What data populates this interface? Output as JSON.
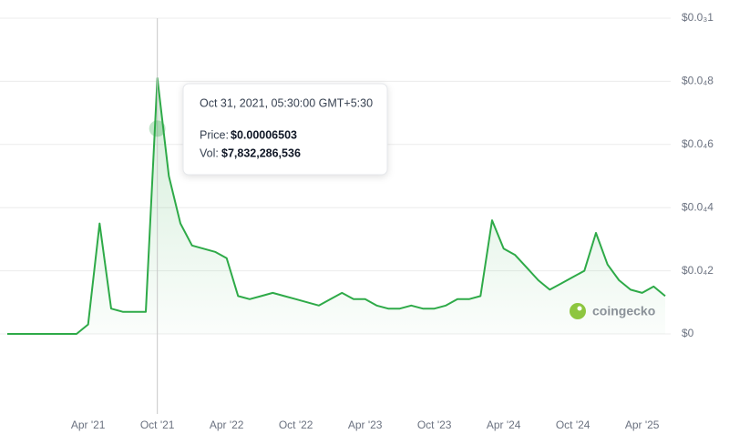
{
  "chart_data": {
    "type": "line",
    "color": "#2eaa48",
    "grid": true,
    "x": [
      "2020-09",
      "2020-10",
      "2020-11",
      "2020-12",
      "2021-01",
      "2021-02",
      "2021-03",
      "2021-04",
      "2021-05",
      "2021-06",
      "2021-07",
      "2021-08",
      "2021-09",
      "2021-10",
      "2021-11",
      "2021-12",
      "2022-01",
      "2022-02",
      "2022-03",
      "2022-04",
      "2022-05",
      "2022-06",
      "2022-07",
      "2022-08",
      "2022-09",
      "2022-10",
      "2022-11",
      "2022-12",
      "2023-01",
      "2023-02",
      "2023-03",
      "2023-04",
      "2023-05",
      "2023-06",
      "2023-07",
      "2023-08",
      "2023-09",
      "2023-10",
      "2023-11",
      "2023-12",
      "2024-01",
      "2024-02",
      "2024-03",
      "2024-04",
      "2024-05",
      "2024-06",
      "2024-07",
      "2024-08",
      "2024-09",
      "2024-10",
      "2024-11",
      "2024-12",
      "2025-01",
      "2025-02",
      "2025-03",
      "2025-04",
      "2025-05",
      "2025-06"
    ],
    "values": [
      1e-08,
      1e-08,
      1e-08,
      1e-08,
      1e-08,
      1e-08,
      1e-08,
      3e-06,
      3.5e-05,
      8e-06,
      7e-06,
      7e-06,
      7e-06,
      8.1e-05,
      5e-05,
      3.5e-05,
      2.8e-05,
      2.7e-05,
      2.6e-05,
      2.4e-05,
      1.2e-05,
      1.1e-05,
      1.2e-05,
      1.3e-05,
      1.2e-05,
      1.1e-05,
      1e-05,
      9e-06,
      1.1e-05,
      1.3e-05,
      1.1e-05,
      1.1e-05,
      9e-06,
      8e-06,
      8e-06,
      9e-06,
      8e-06,
      8e-06,
      9e-06,
      1.1e-05,
      1.1e-05,
      1.2e-05,
      3.6e-05,
      2.7e-05,
      2.5e-05,
      2.1e-05,
      1.7e-05,
      1.4e-05,
      1.6e-05,
      1.8e-05,
      2e-05,
      3.2e-05,
      2.2e-05,
      1.7e-05,
      1.4e-05,
      1.3e-05,
      1.5e-05,
      1.2e-05
    ],
    "xlim": [
      "2020-09",
      "2025-06"
    ],
    "xticks": [
      {
        "value": "2021-04",
        "label": "Apr '21"
      },
      {
        "value": "2021-10",
        "label": "Oct '21"
      },
      {
        "value": "2022-04",
        "label": "Apr '22"
      },
      {
        "value": "2022-10",
        "label": "Oct '22"
      },
      {
        "value": "2023-04",
        "label": "Apr '23"
      },
      {
        "value": "2023-10",
        "label": "Oct '23"
      },
      {
        "value": "2024-04",
        "label": "Apr '24"
      },
      {
        "value": "2024-10",
        "label": "Oct '24"
      },
      {
        "value": "2025-04",
        "label": "Apr '25"
      }
    ],
    "ylim": [
      0,
      0.0001
    ],
    "yticks": [
      {
        "value": 0,
        "label": "$0"
      },
      {
        "value": 2e-05,
        "label": "$0.0₄2"
      },
      {
        "value": 4e-05,
        "label": "$0.0₄4"
      },
      {
        "value": 6e-05,
        "label": "$0.0₄6"
      },
      {
        "value": 8e-05,
        "label": "$0.0₄8"
      },
      {
        "value": 0.0001,
        "label": "$0.0₃1"
      }
    ],
    "watermark": "coingecko",
    "tooltip": {
      "x": "2021-10",
      "date": "Oct 31, 2021, 05:30:00 GMT+5:30",
      "price_label": "Price:",
      "value": 6.503e-05,
      "value_label": "$0.00006503",
      "vol_label": "Vol:",
      "vol": "$7,832,286,536"
    }
  }
}
